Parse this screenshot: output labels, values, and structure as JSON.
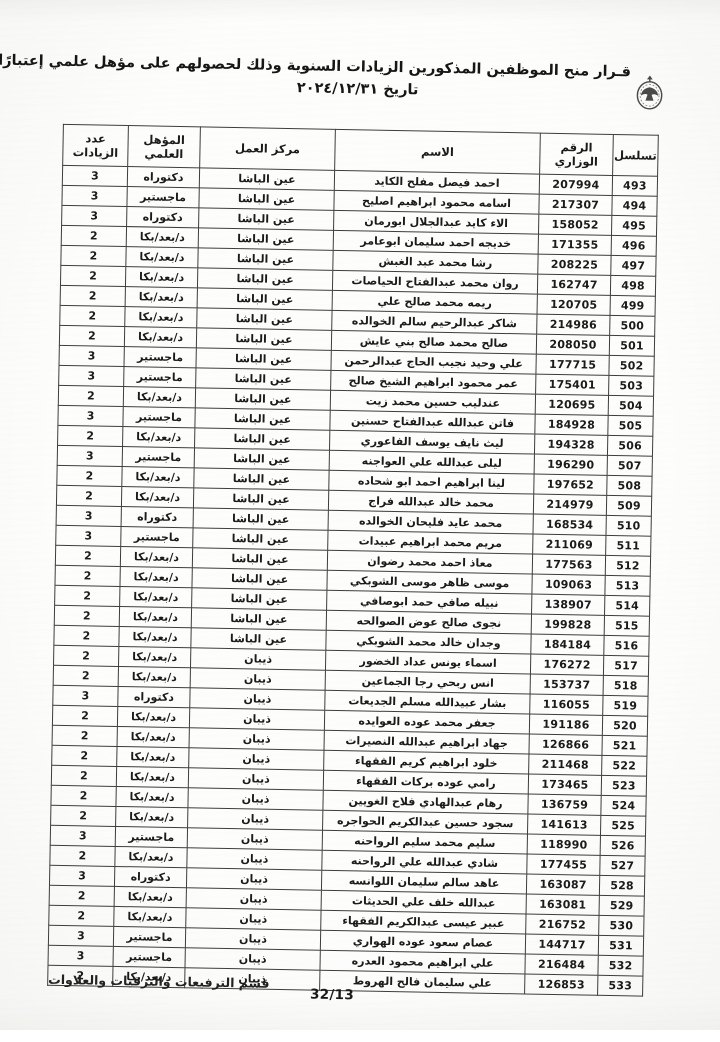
{
  "page": {
    "background": "#fcfcfb",
    "ink": "#1c1c1c",
    "border_color": "#3d3d3d"
  },
  "document": {
    "title_line1": "قـرار منح الموظفين المذكورين الزيادات السنوية  وذلك لحصولهم على مؤهل علمي إعتبارًا من",
    "title_line2": "تاريخ ٢٠٢٤/١٢/٣١",
    "emblem_icon": "jordan-coat-of-arms",
    "footer_department": "قسم الترفيعات والترقيات والعلاوات",
    "footer_page_number": "32/13"
  },
  "table": {
    "headers": {
      "serial": "تسلسل",
      "ministry_no": "الرقم الوزاري",
      "name": "الاسم",
      "work_center": "مركز العمل",
      "qualification": "المؤهل العلمي",
      "increases": "عدد الزيادات"
    },
    "rows": [
      {
        "serial": "493",
        "ministry_no": "207994",
        "name": "احمد فيصل مفلح الكايد",
        "center": "عين الباشا",
        "qualification": "دكتوراه",
        "increases": "3"
      },
      {
        "serial": "494",
        "ministry_no": "217307",
        "name": "اسامه محمود ابراهيم اصليح",
        "center": "عين الباشا",
        "qualification": "ماجستير",
        "increases": "3"
      },
      {
        "serial": "495",
        "ministry_no": "158052",
        "name": "الاء كايد عبدالجلال ابورمان",
        "center": "عين الباشا",
        "qualification": "دكتوراه",
        "increases": "3"
      },
      {
        "serial": "496",
        "ministry_no": "171355",
        "name": "خديجه احمد سليمان ابوعامر",
        "center": "عين الباشا",
        "qualification": "د/بعد/بكا",
        "increases": "2"
      },
      {
        "serial": "497",
        "ministry_no": "208225",
        "name": "رشا محمد عبد الغبش",
        "center": "عين الباشا",
        "qualification": "د/بعد/بكا",
        "increases": "2"
      },
      {
        "serial": "498",
        "ministry_no": "162747",
        "name": "روان محمد عبدالفتاح الحياصات",
        "center": "عين الباشا",
        "qualification": "د/بعد/بكا",
        "increases": "2"
      },
      {
        "serial": "499",
        "ministry_no": "120705",
        "name": "ريمه محمد صالح علي",
        "center": "عين الباشا",
        "qualification": "د/بعد/بكا",
        "increases": "2"
      },
      {
        "serial": "500",
        "ministry_no": "214986",
        "name": "شاكر عبدالرحيم سالم الخوالده",
        "center": "عين الباشا",
        "qualification": "د/بعد/بكا",
        "increases": "2"
      },
      {
        "serial": "501",
        "ministry_no": "208050",
        "name": "صالح محمد صالح بني عايش",
        "center": "عين الباشا",
        "qualification": "د/بعد/بكا",
        "increases": "2"
      },
      {
        "serial": "502",
        "ministry_no": "177715",
        "name": "علي وحيد نجيب الحاج عبدالرحمن",
        "center": "عين الباشا",
        "qualification": "ماجستير",
        "increases": "3"
      },
      {
        "serial": "503",
        "ministry_no": "175401",
        "name": "عمر محمود ابراهيم الشيخ صالح",
        "center": "عين الباشا",
        "qualification": "ماجستير",
        "increases": "3"
      },
      {
        "serial": "504",
        "ministry_no": "120695",
        "name": "عندليب حسين محمد زيت",
        "center": "عين الباشا",
        "qualification": "د/بعد/بكا",
        "increases": "2"
      },
      {
        "serial": "505",
        "ministry_no": "184928",
        "name": "فاتن عبدالله عبدالفتاح حسنين",
        "center": "عين الباشا",
        "qualification": "ماجستير",
        "increases": "3"
      },
      {
        "serial": "506",
        "ministry_no": "194328",
        "name": "ليث نايف يوسف الفاعوري",
        "center": "عين الباشا",
        "qualification": "د/بعد/بكا",
        "increases": "2"
      },
      {
        "serial": "507",
        "ministry_no": "196290",
        "name": "ليلى عبدالله علي العواجنه",
        "center": "عين الباشا",
        "qualification": "ماجستير",
        "increases": "3"
      },
      {
        "serial": "508",
        "ministry_no": "197652",
        "name": "لينا ابراهيم احمد ابو شحاده",
        "center": "عين الباشا",
        "qualification": "د/بعد/بكا",
        "increases": "2"
      },
      {
        "serial": "509",
        "ministry_no": "214979",
        "name": "محمد خالد عبدالله فراج",
        "center": "عين الباشا",
        "qualification": "د/بعد/بكا",
        "increases": "2"
      },
      {
        "serial": "510",
        "ministry_no": "168534",
        "name": "محمد عايد فليحان الخوالده",
        "center": "عين الباشا",
        "qualification": "دكتوراه",
        "increases": "3"
      },
      {
        "serial": "511",
        "ministry_no": "211069",
        "name": "مريم محمد ابراهيم عبيدات",
        "center": "عين الباشا",
        "qualification": "ماجستير",
        "increases": "3"
      },
      {
        "serial": "512",
        "ministry_no": "177563",
        "name": "معاذ احمد محمد رضوان",
        "center": "عين الباشا",
        "qualification": "د/بعد/بكا",
        "increases": "2"
      },
      {
        "serial": "513",
        "ministry_no": "109063",
        "name": "موسى ظاهر موسى الشوبكي",
        "center": "عين الباشا",
        "qualification": "د/بعد/بكا",
        "increases": "2"
      },
      {
        "serial": "514",
        "ministry_no": "138907",
        "name": "نبيله صافي حمد ابوصافي",
        "center": "عين الباشا",
        "qualification": "د/بعد/بكا",
        "increases": "2"
      },
      {
        "serial": "515",
        "ministry_no": "199828",
        "name": "نجوى صالح عوض الصوالحه",
        "center": "عين الباشا",
        "qualification": "د/بعد/بكا",
        "increases": "2"
      },
      {
        "serial": "516",
        "ministry_no": "184184",
        "name": "وجدان خالد محمد الشوبكي",
        "center": "عين الباشا",
        "qualification": "د/بعد/بكا",
        "increases": "2"
      },
      {
        "serial": "517",
        "ministry_no": "176272",
        "name": "اسماء يونس عداد الخضور",
        "center": "ذيبان",
        "qualification": "د/بعد/بكا",
        "increases": "2"
      },
      {
        "serial": "518",
        "ministry_no": "153737",
        "name": "انس ربحي رجا الجماعين",
        "center": "ذيبان",
        "qualification": "د/بعد/بكا",
        "increases": "2"
      },
      {
        "serial": "519",
        "ministry_no": "116055",
        "name": "بشار عبيدالله مسلم الجديعات",
        "center": "ذيبان",
        "qualification": "دكتوراه",
        "increases": "3"
      },
      {
        "serial": "520",
        "ministry_no": "191186",
        "name": "جعفر محمد عوده العوايده",
        "center": "ذيبان",
        "qualification": "د/بعد/بكا",
        "increases": "2"
      },
      {
        "serial": "521",
        "ministry_no": "126866",
        "name": "جهاد ابراهيم عبدالله النصيرات",
        "center": "ذيبان",
        "qualification": "د/بعد/بكا",
        "increases": "2"
      },
      {
        "serial": "522",
        "ministry_no": "211468",
        "name": "خلود ابراهيم كريم الفقهاء",
        "center": "ذيبان",
        "qualification": "د/بعد/بكا",
        "increases": "2"
      },
      {
        "serial": "523",
        "ministry_no": "173465",
        "name": "رامي عوده بركات الفقهاء",
        "center": "ذيبان",
        "qualification": "د/بعد/بكا",
        "increases": "2"
      },
      {
        "serial": "524",
        "ministry_no": "136759",
        "name": "رهام عبدالهادي فلاح الغويين",
        "center": "ذيبان",
        "qualification": "د/بعد/بكا",
        "increases": "2"
      },
      {
        "serial": "525",
        "ministry_no": "141613",
        "name": "سجود حسين عبدالكريم الحواجره",
        "center": "ذيبان",
        "qualification": "د/بعد/بكا",
        "increases": "2"
      },
      {
        "serial": "526",
        "ministry_no": "118990",
        "name": "سليم محمد سليم الرواحنه",
        "center": "ذيبان",
        "qualification": "ماجستير",
        "increases": "3"
      },
      {
        "serial": "527",
        "ministry_no": "177455",
        "name": "شادي عبدالله علي الرواحنه",
        "center": "ذيبان",
        "qualification": "د/بعد/بكا",
        "increases": "2"
      },
      {
        "serial": "528",
        "ministry_no": "163087",
        "name": "عاهد سالم سليمان اللوانسه",
        "center": "ذيبان",
        "qualification": "دكتوراه",
        "increases": "3"
      },
      {
        "serial": "529",
        "ministry_no": "163081",
        "name": "عبدالله خلف علي الحديثات",
        "center": "ذيبان",
        "qualification": "د/بعد/بكا",
        "increases": "2"
      },
      {
        "serial": "530",
        "ministry_no": "216752",
        "name": "عبير عيسى عبدالكريم الفقهاء",
        "center": "ذيبان",
        "qualification": "د/بعد/بكا",
        "increases": "2"
      },
      {
        "serial": "531",
        "ministry_no": "144717",
        "name": "عصام سعود عوده الهواري",
        "center": "ذيبان",
        "qualification": "ماجستير",
        "increases": "3"
      },
      {
        "serial": "532",
        "ministry_no": "216484",
        "name": "علي ابراهيم محمود العدره",
        "center": "ذيبان",
        "qualification": "ماجستير",
        "increases": "3"
      },
      {
        "serial": "533",
        "ministry_no": "126853",
        "name": "علي سليمان فالح الهروط",
        "center": "ذيبان",
        "qualification": "د/بعد/بكا",
        "increases": "2"
      }
    ]
  }
}
